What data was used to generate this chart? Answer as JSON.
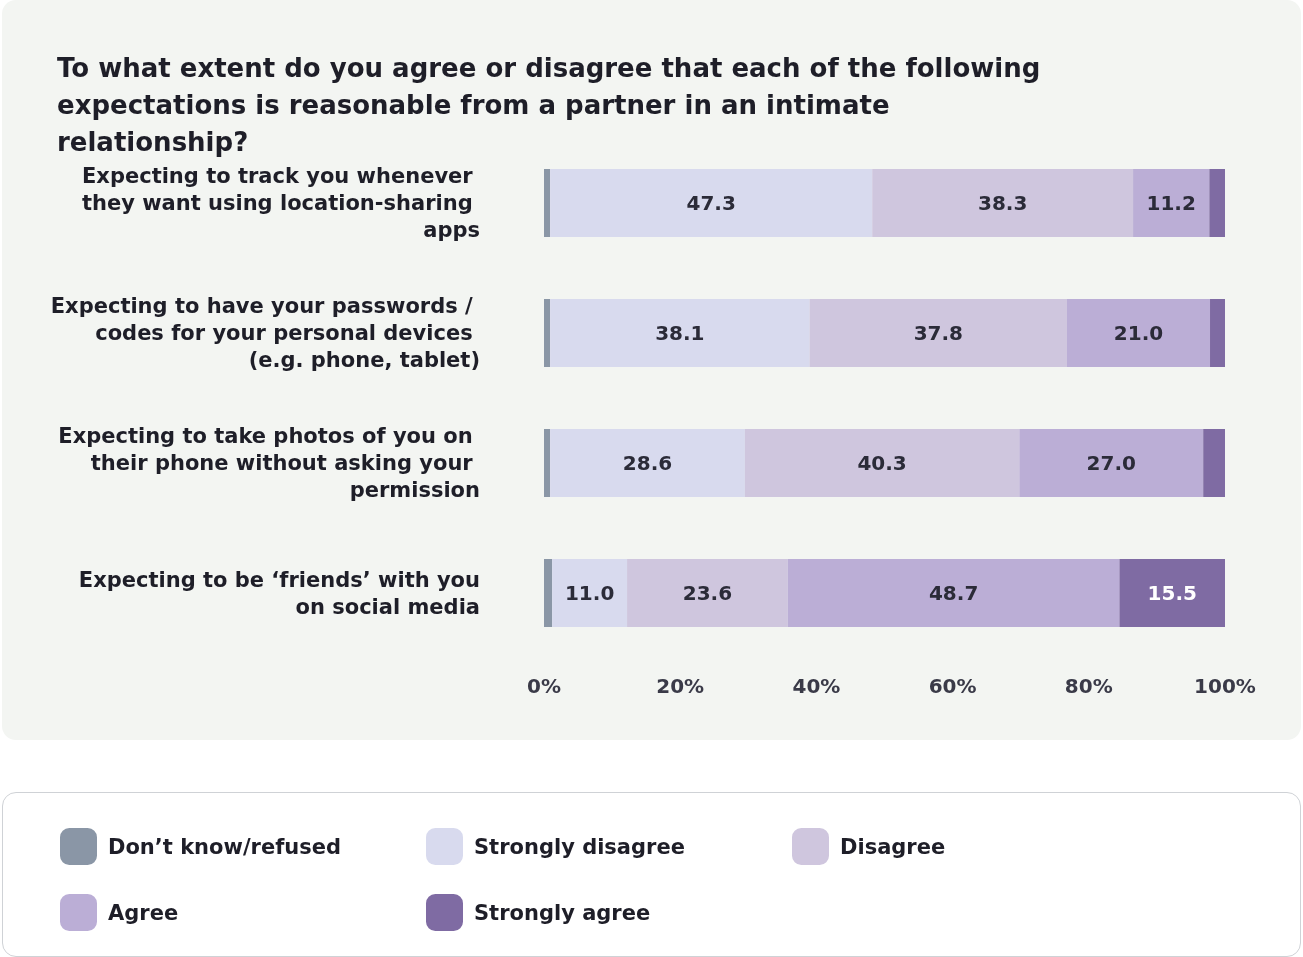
{
  "chart_data": {
    "type": "bar",
    "orientation": "horizontal",
    "stacked": true,
    "title": "To what extent do you agree or disagree that each of the following expectations is reasonable from a partner in an intimate relationship?",
    "categories": [
      "Expecting to track you whenever they want using location-sharing apps",
      "Expecting to have your passwords / codes for your personal devices (e.g. phone, tablet)",
      "Expecting to take photos of you on their phone without asking your permission",
      "Expecting to be ‘friends’ with you on social media"
    ],
    "series": [
      {
        "name": "Don’t know/refused",
        "color": "#8a96a6",
        "values": [
          0.9,
          0.9,
          0.9,
          1.2
        ],
        "value_labels": [
          null,
          null,
          null,
          null
        ]
      },
      {
        "name": "Strongly disagree",
        "color": "#d8daee",
        "values": [
          47.3,
          38.1,
          28.6,
          11.0
        ],
        "value_labels": [
          "47.3",
          "38.1",
          "28.6",
          "11.0"
        ]
      },
      {
        "name": "Disagree",
        "color": "#cfc6de",
        "values": [
          38.3,
          37.8,
          40.3,
          23.6
        ],
        "value_labels": [
          "38.3",
          "37.8",
          "40.3",
          "23.6"
        ]
      },
      {
        "name": "Agree",
        "color": "#bbaed6",
        "values": [
          11.2,
          21.0,
          27.0,
          48.7
        ],
        "value_labels": [
          "11.2",
          "21.0",
          "27.0",
          "48.7"
        ]
      },
      {
        "name": "Strongly agree",
        "color": "#7f6ba3",
        "values": [
          2.3,
          2.2,
          3.2,
          15.5
        ],
        "value_labels": [
          null,
          null,
          null,
          "15.5"
        ]
      }
    ],
    "xlim": [
      0,
      100
    ],
    "xticks": [
      {
        "value": 0,
        "label": "0%"
      },
      {
        "value": 20,
        "label": "20%"
      },
      {
        "value": 40,
        "label": "40%"
      },
      {
        "value": 60,
        "label": "60%"
      },
      {
        "value": 80,
        "label": "80%"
      },
      {
        "value": 100,
        "label": "100%"
      }
    ],
    "legend": "bottom",
    "grid": false
  }
}
